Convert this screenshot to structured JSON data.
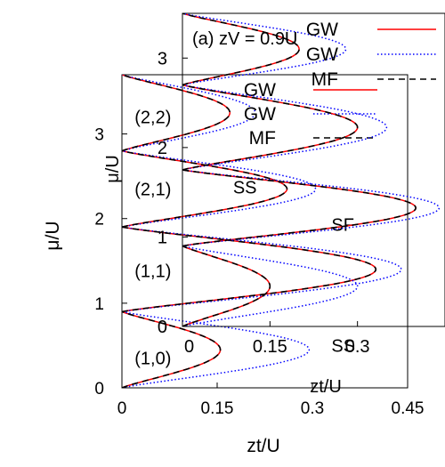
{
  "chart_data": [
    {
      "type": "line",
      "role": "main",
      "xlabel": "zt/U",
      "ylabel": "μ/U",
      "xlim": [
        0,
        0.45
      ],
      "ylim": [
        0,
        3.7
      ],
      "xticks": [
        "0",
        "0.15",
        "0.3",
        "0.45"
      ],
      "yticks": [
        "0",
        "1",
        "2",
        "3"
      ],
      "regions": [
        {
          "text": "(1,0)",
          "x": 0.02,
          "y": 0.35
        },
        {
          "text": "(1,1)",
          "x": 0.02,
          "y": 1.38
        },
        {
          "text": "(2,1)",
          "x": 0.02,
          "y": 2.35
        },
        {
          "text": "(2,2)",
          "x": 0.02,
          "y": 3.2
        },
        {
          "text": "SS",
          "x": 0.33,
          "y": 0.5
        },
        {
          "text": "SS",
          "x": 0.175,
          "y": 2.37
        },
        {
          "text": "SF",
          "x": 0.33,
          "y": 1.93
        }
      ],
      "legend": {
        "placement": "top-right",
        "entries": [
          "GW",
          "GW",
          "MF"
        ]
      },
      "series": [
        {
          "label": "GW",
          "color": "#ff0000",
          "dash": "solid",
          "lobes": [
            [
              0.0,
              0.9,
              0.155
            ],
            [
              0.9,
              1.9,
              0.4
            ],
            [
              1.9,
              2.8,
              0.26
            ],
            [
              2.8,
              3.7,
              0.17
            ]
          ]
        },
        {
          "label": "GW",
          "color": "#0000ff",
          "dash": "dotted",
          "lobes": [
            [
              0.0,
              0.9,
              0.295
            ],
            [
              0.9,
              1.9,
              0.44
            ],
            [
              1.9,
              2.8,
              0.305
            ],
            [
              2.8,
              3.7,
              0.21
            ]
          ]
        },
        {
          "label": "MF",
          "color": "#000000",
          "dash": "dashed",
          "lobes": [
            [
              0.0,
              0.9,
              0.155
            ],
            [
              0.9,
              1.9,
              0.4
            ],
            [
              1.9,
              2.8,
              0.26
            ],
            [
              2.8,
              3.7,
              0.17
            ]
          ]
        }
      ]
    },
    {
      "type": "line",
      "role": "overlay",
      "title": "(a) zV = 0.9U",
      "xlabel": "zt/U",
      "ylabel": "μ/U",
      "xlim": [
        0,
        0.45
      ],
      "ylim": [
        0,
        3.5
      ],
      "xticks": [
        "0",
        "0.15",
        "0.3"
      ],
      "yticks": [
        "0",
        "1",
        "2",
        "3"
      ],
      "legend": {
        "placement": "top-right",
        "entries": [
          "GW",
          "GW",
          "MF"
        ]
      },
      "series": [
        {
          "label": "GW",
          "color": "#ff0000",
          "dash": "solid",
          "lobes": [
            [
              0.0,
              0.9,
              0.15
            ],
            [
              0.9,
              1.75,
              0.4
            ],
            [
              1.75,
              2.7,
              0.3
            ],
            [
              2.7,
              3.5,
              0.2
            ]
          ]
        },
        {
          "label": "GW",
          "color": "#0000ff",
          "dash": "dotted",
          "lobes": [
            [
              0.0,
              0.9,
              0.3
            ],
            [
              0.9,
              1.75,
              0.44
            ],
            [
              1.75,
              2.7,
              0.35
            ],
            [
              2.7,
              3.5,
              0.28
            ]
          ]
        },
        {
          "label": "MF",
          "color": "#000000",
          "dash": "dashed",
          "lobes": [
            [
              0.0,
              0.9,
              0.15
            ],
            [
              0.9,
              1.75,
              0.4
            ],
            [
              1.75,
              2.7,
              0.3
            ],
            [
              2.7,
              3.5,
              0.2
            ]
          ]
        }
      ]
    }
  ]
}
